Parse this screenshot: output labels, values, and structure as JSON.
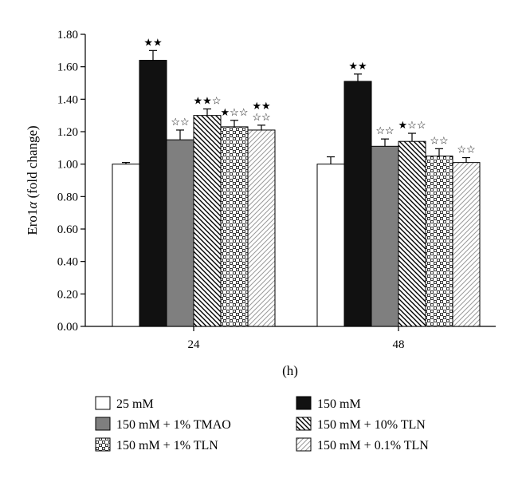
{
  "chart_data": {
    "type": "bar",
    "ylabel_prefix": "Ero1",
    "ylabel_greek": "α",
    "ylabel_suffix": " (fold change)",
    "xlabel": "(h)",
    "ylim": [
      0,
      1.8
    ],
    "y_ticks": [
      "0.00",
      "0.20",
      "0.40",
      "0.60",
      "0.80",
      "1.00",
      "1.20",
      "1.40",
      "1.60",
      "1.80"
    ],
    "categories": [
      "24",
      "48"
    ],
    "series": [
      {
        "name": "25 mM",
        "pattern": "white",
        "values": [
          1.0,
          1.0
        ],
        "errors": [
          0.01,
          0.045
        ],
        "marks": [
          [],
          []
        ]
      },
      {
        "name": "150 mM",
        "pattern": "black",
        "values": [
          1.64,
          1.51
        ],
        "errors": [
          0.06,
          0.045
        ],
        "marks": [
          [
            "★★"
          ],
          [
            "★★"
          ]
        ]
      },
      {
        "name": "150 mM + 1% TMAO",
        "pattern": "gray",
        "values": [
          1.15,
          1.11
        ],
        "errors": [
          0.06,
          0.045
        ],
        "marks": [
          [
            "☆☆"
          ],
          [
            "☆☆"
          ]
        ]
      },
      {
        "name": "150 mM + 10% TLN",
        "pattern": "diag-back",
        "values": [
          1.3,
          1.14
        ],
        "errors": [
          0.04,
          0.05
        ],
        "marks": [
          [
            "★★☆"
          ],
          [
            "★☆☆"
          ]
        ]
      },
      {
        "name": "150 mM + 1% TLN",
        "pattern": "check",
        "values": [
          1.23,
          1.05
        ],
        "errors": [
          0.04,
          0.045
        ],
        "marks": [
          [
            "★☆☆"
          ],
          [
            "☆☆"
          ]
        ]
      },
      {
        "name": "150 mM + 0.1% TLN",
        "pattern": "diag-fwd",
        "values": [
          1.21,
          1.01
        ],
        "errors": [
          0.03,
          0.03
        ],
        "marks": [
          [
            "★★",
            "☆☆"
          ],
          [
            "☆☆"
          ]
        ]
      }
    ],
    "legend_order": [
      0,
      1,
      2,
      3,
      4,
      5
    ],
    "grid": false,
    "legend_position": "bottom"
  }
}
